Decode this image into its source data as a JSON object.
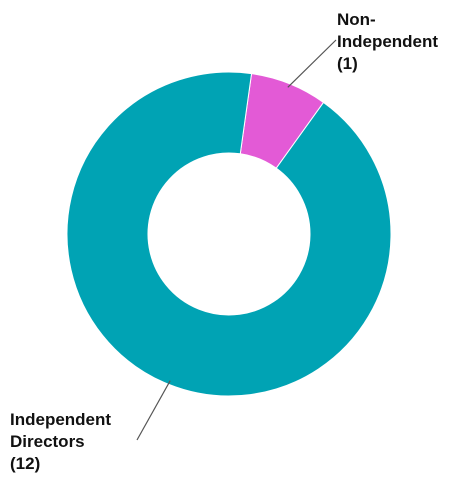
{
  "chart_data": {
    "type": "pie",
    "variant": "donut",
    "title": "",
    "legend": "none",
    "slices": [
      {
        "name": "Non-Independent",
        "value": 1,
        "color": "#e35ad6",
        "label_lines": [
          "Non-",
          "Independent",
          "(1)"
        ]
      },
      {
        "name": "Independent Directors",
        "value": 12,
        "color": "#00a3b4",
        "label_lines": [
          "Independent",
          "Directors",
          "(12)"
        ]
      }
    ],
    "start_angle_deg": 8
  }
}
